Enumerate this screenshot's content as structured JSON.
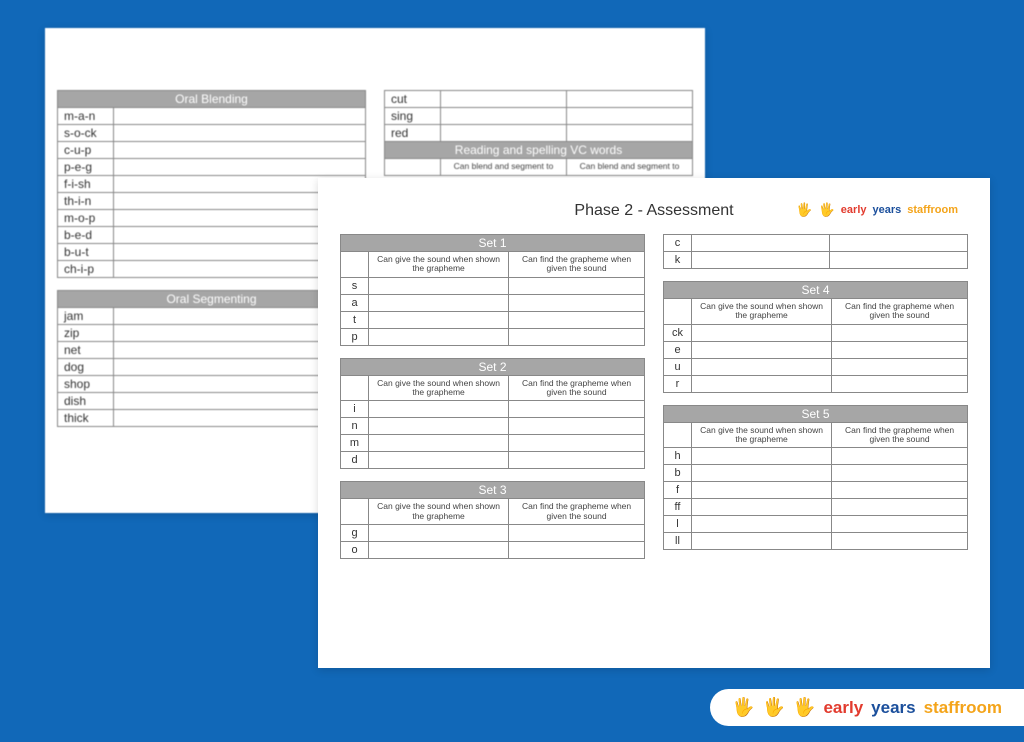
{
  "back": {
    "oral_blending": {
      "title": "Oral Blending",
      "rows": [
        "m-a-n",
        "s-o-ck",
        "c-u-p",
        "p-e-g",
        "f-i-sh",
        "th-i-n",
        "m-o-p",
        "b-e-d",
        "b-u-t",
        "ch-i-p"
      ]
    },
    "oral_segmenting": {
      "title": "Oral Segmenting",
      "rows": [
        "jam",
        "zip",
        "net",
        "dog",
        "shop",
        "dish",
        "thick"
      ]
    },
    "right_top_rows": [
      "cut",
      "sing",
      "red"
    ],
    "vc": {
      "title": "Reading and spelling VC words",
      "sub1": "Can blend and segment to",
      "sub2": "Can blend and segment to"
    }
  },
  "front": {
    "title": "Phase 2 - Assessment",
    "col1": "Can give the sound when shown the grapheme",
    "col2": "Can find the grapheme when given the sound",
    "sets": [
      {
        "title": "Set 1",
        "rows": [
          "s",
          "a",
          "t",
          "p"
        ]
      },
      {
        "title": "Set 2",
        "rows": [
          "i",
          "n",
          "m",
          "d"
        ]
      },
      {
        "title": "Set 3",
        "rows": [
          "g",
          "o"
        ]
      }
    ],
    "right_top_rows": [
      "c",
      "k"
    ],
    "right_sets": [
      {
        "title": "Set 4",
        "rows": [
          "ck",
          "e",
          "u",
          "r"
        ]
      },
      {
        "title": "Set 5",
        "rows": [
          "h",
          "b",
          "f",
          "ff",
          "l",
          "ll"
        ]
      }
    ]
  },
  "brand": {
    "early": "early",
    "years": "years",
    "staff": "staffroom"
  }
}
